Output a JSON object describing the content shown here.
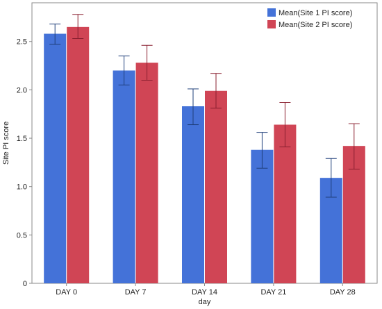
{
  "chart_data": {
    "type": "bar",
    "xlabel": "day",
    "ylabel": "Site PI score",
    "categories": [
      "DAY 0",
      "DAY 7",
      "DAY 14",
      "DAY 21",
      "DAY 28"
    ],
    "ylim": [
      0,
      2.9
    ],
    "yticks": [
      "0",
      "0.5",
      "1.0",
      "1.5",
      "2.0",
      "2.5"
    ],
    "grid": false,
    "legend_position": "top-right",
    "series": [
      {
        "name": "Mean(Site 1 PI score)",
        "color": "#4472d8",
        "error_color": "#1f3f7a",
        "values": [
          2.58,
          2.2,
          1.83,
          1.38,
          1.09
        ],
        "error_low": [
          2.47,
          2.05,
          1.64,
          1.19,
          0.89
        ],
        "error_high": [
          2.68,
          2.35,
          2.01,
          1.56,
          1.29
        ]
      },
      {
        "name": "Mean(Site 2 PI score)",
        "color": "#d04555",
        "error_color": "#8a2030",
        "values": [
          2.65,
          2.28,
          1.99,
          1.64,
          1.42
        ],
        "error_low": [
          2.53,
          2.1,
          1.81,
          1.41,
          1.18
        ],
        "error_high": [
          2.78,
          2.46,
          2.17,
          1.87,
          1.65
        ]
      }
    ]
  }
}
